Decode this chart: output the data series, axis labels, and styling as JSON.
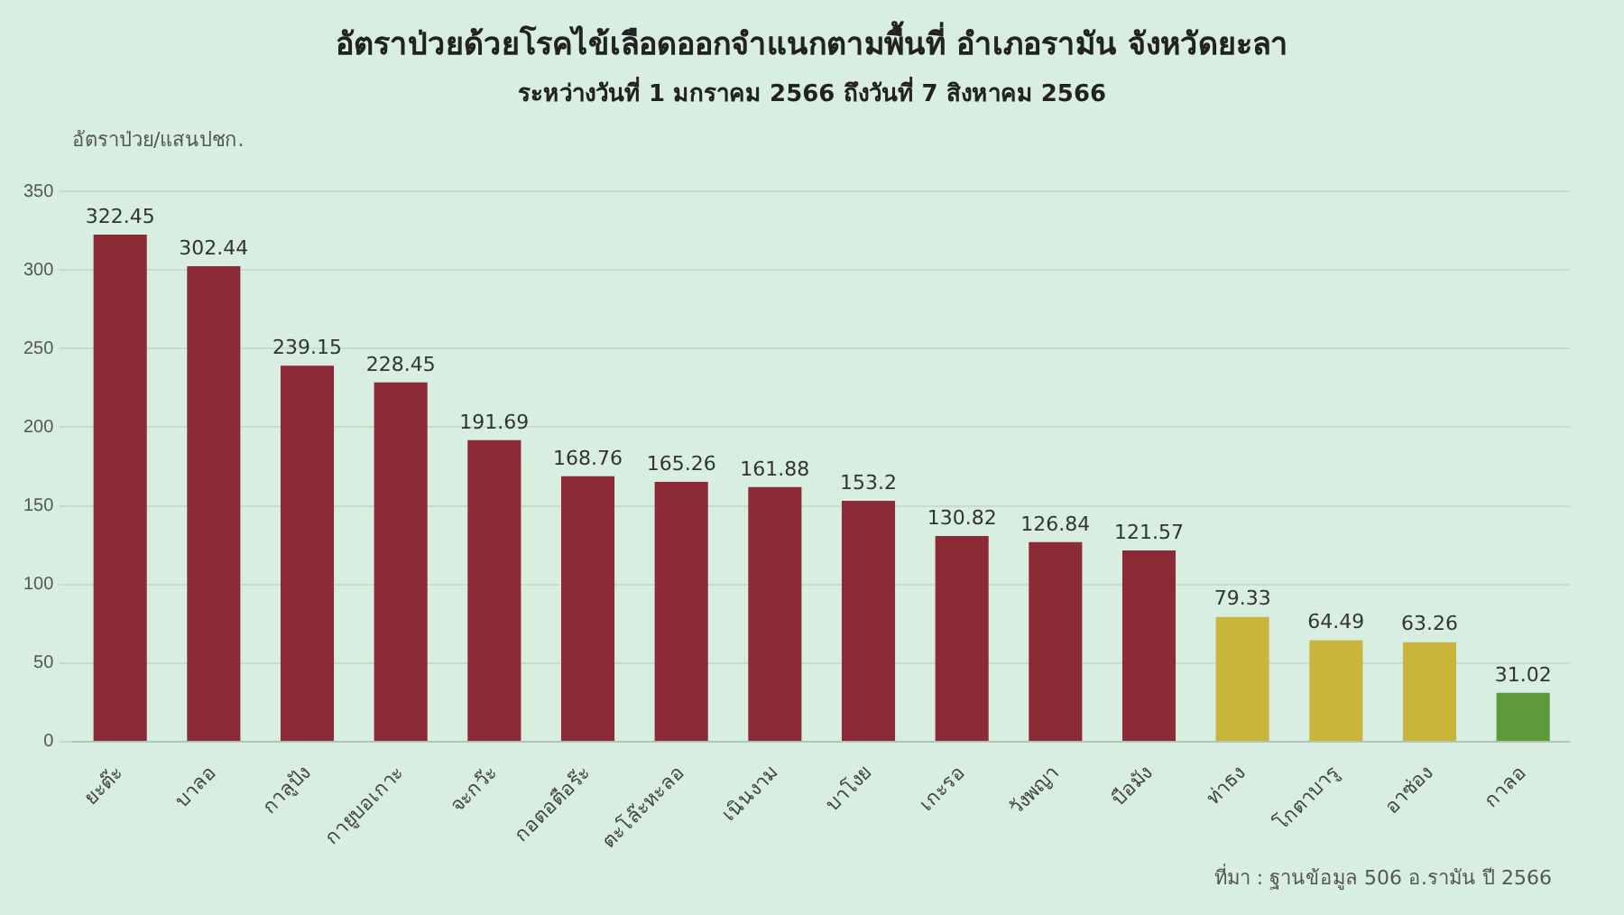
{
  "chart_data": {
    "type": "bar",
    "title": "อัตราป่วยด้วยโรคไข้เลือดออกจำแนกตามพื้นที่ อำเภอรามัน จังหวัดยะลา",
    "subtitle": "ระหว่างวันที่ 1 มกราคม 2566 ถึงวันที่ 7 สิงหาคม 2566",
    "ylabel": "อัตราป่วย/แสนปชก.",
    "categories": [
      "ยะต๊ะ",
      "บาลอ",
      "กาลูปัง",
      "กายูบอเกาะ",
      "จะกว๊ะ",
      "กอตอตือร๊ะ",
      "ตะโล๊ะหะลอ",
      "เนินงาม",
      "บาโงย",
      "เกะรอ",
      "วังพญา",
      "บือมัง",
      "ท่าธง",
      "โกตาบารู",
      "อาซ่อง",
      "กาลอ"
    ],
    "values": [
      322.45,
      302.44,
      239.15,
      228.45,
      191.69,
      168.76,
      165.26,
      161.88,
      153.2,
      130.82,
      126.84,
      121.57,
      79.33,
      64.49,
      63.26,
      31.02
    ],
    "colors": [
      "#8c2a35",
      "#8c2a35",
      "#8c2a35",
      "#8c2a35",
      "#8c2a35",
      "#8c2a35",
      "#8c2a35",
      "#8c2a35",
      "#8c2a35",
      "#8c2a35",
      "#8c2a35",
      "#8c2a35",
      "#c9b53c",
      "#c9b53c",
      "#c9b53c",
      "#5e9a3c"
    ],
    "ylim": [
      0,
      350
    ],
    "yticks": [
      0,
      50,
      100,
      150,
      200,
      250,
      300,
      350
    ],
    "grid": "y",
    "data_labels": true,
    "legend": false,
    "annotations": [
      "ที่มา : ฐานข้อมูล 506 อ.รามัน ปี 2566"
    ]
  }
}
